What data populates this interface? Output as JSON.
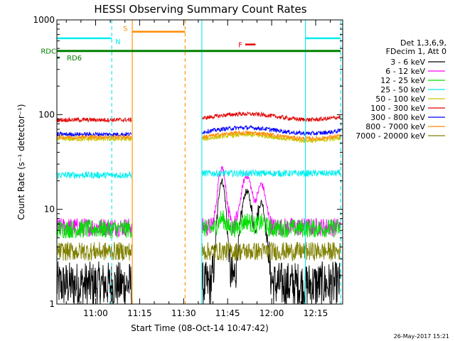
{
  "chart_data": {
    "type": "line",
    "title": "HESSI Observing Summary Count Rates",
    "xlabel": "Start Time (08-Oct-14 10:47:42)",
    "ylabel": "Count Rate (s⁻¹ detector⁻¹)",
    "y_scale": "log",
    "ylim": [
      1,
      1000
    ],
    "y_ticks": [
      {
        "value": 1,
        "label": "1"
      },
      {
        "value": 10,
        "label": "10"
      },
      {
        "value": 100,
        "label": "100"
      },
      {
        "value": 1000,
        "label": "1000"
      }
    ],
    "xlim_minutes": [
      646.8,
      744.2
    ],
    "x_ticks": [
      {
        "minute": 660,
        "label": "11:00"
      },
      {
        "minute": 675,
        "label": "11:15"
      },
      {
        "minute": 690,
        "label": "11:30"
      },
      {
        "minute": 705,
        "label": "11:45"
      },
      {
        "minute": 720,
        "label": "12:00"
      },
      {
        "minute": 735,
        "label": "12:15"
      }
    ],
    "legend_header": [
      "Det 1,3,6,9,",
      "FDecim 1, Att 0"
    ],
    "legend_position": "right",
    "series": [
      {
        "name": "3 - 6 keV",
        "color": "#000000",
        "seg1": 1.6,
        "seg2": 1.6,
        "flare_peak": 20
      },
      {
        "name": "6 - 12 keV",
        "color": "#ff00ff",
        "seg1": 6.5,
        "seg2": 6.5,
        "flare_peak": 28
      },
      {
        "name": "12 - 25 keV",
        "color": "#00e000",
        "seg1": 6.2,
        "seg2": 6.3,
        "flare_peak": 8
      },
      {
        "name": "25 - 50 keV",
        "color": "#00eeee",
        "seg1": 23,
        "seg2": 24,
        "flare_peak": 24
      },
      {
        "name": "50 - 100 keV",
        "color": "#c8c800",
        "seg1": 55,
        "seg2": 57,
        "flare_peak": 57
      },
      {
        "name": "100 - 300 keV",
        "color": "#e00000",
        "seg1": 88,
        "seg2": 95,
        "flare_peak": 95
      },
      {
        "name": "300 - 800 keV",
        "color": "#0000ff",
        "seg1": 62,
        "seg2": 68,
        "flare_peak": 68
      },
      {
        "name": "800 - 7000 keV",
        "color": "#ff8c00",
        "seg1": 58,
        "seg2": 60,
        "flare_peak": 60
      },
      {
        "name": "7000 - 20000 keV",
        "color": "#808000",
        "seg1": 3.6,
        "seg2": 3.6,
        "flare_peak": 3.6
      }
    ],
    "data_segments_minutes": [
      [
        646.8,
        672.3
      ],
      [
        696.2,
        743.5
      ]
    ],
    "annotations": [
      {
        "label": "S",
        "color": "#ff8c00",
        "from": 672.5,
        "to": 690.5,
        "level": 750
      },
      {
        "label": "N",
        "color": "#00eeee",
        "from": 646.8,
        "to": 665.5,
        "level": 640
      },
      {
        "label": "N",
        "color": "#00eeee",
        "from": 731.5,
        "to": 743.5,
        "level": 640
      },
      {
        "label": "F",
        "color": "#e00000",
        "from": 711,
        "to": 714.5,
        "level": 550
      },
      {
        "label": "RDC",
        "color": "#008000",
        "from": 646.8,
        "to": 743.5,
        "level": 470
      },
      {
        "label": "RD6",
        "color": "#008000",
        "from": 646.8,
        "to": 647.8,
        "level": 400
      }
    ],
    "vertical_markers": [
      {
        "minute": 646.8,
        "color": "#00eeee",
        "style": "solid"
      },
      {
        "minute": 665.5,
        "color": "#00eeee",
        "style": "dashed"
      },
      {
        "minute": 672.5,
        "color": "#ff8c00",
        "style": "solid"
      },
      {
        "minute": 690.5,
        "color": "#ff8c00",
        "style": "dashed"
      },
      {
        "minute": 696.2,
        "color": "#00eeee",
        "style": "solid"
      },
      {
        "minute": 731.5,
        "color": "#00eeee",
        "style": "solid"
      },
      {
        "minute": 743.5,
        "color": "#00eeee",
        "style": "dashed"
      }
    ]
  },
  "timestamp": "26-May-2017 15:21"
}
